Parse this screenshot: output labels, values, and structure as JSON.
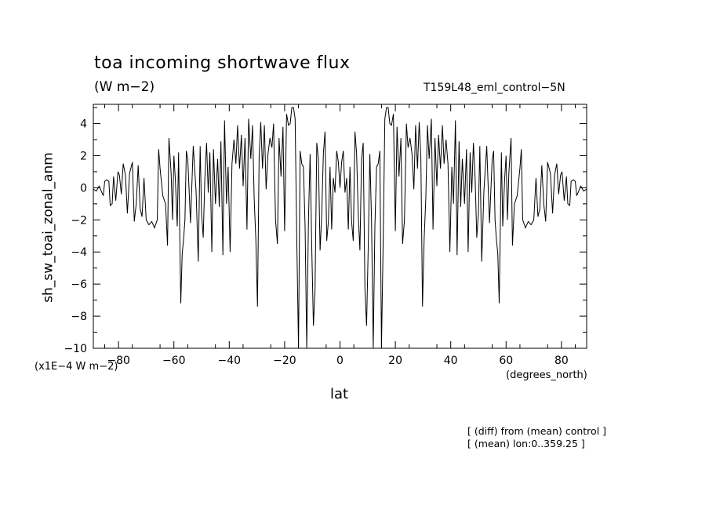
{
  "figure": {
    "title": "toa incoming shortwave flux",
    "units": "(W m−2)",
    "run_id": "T159L48_eml_control−5N",
    "y_scale_note": "(x1E−4 W m−2)",
    "x_units": "(degrees_north)",
    "notes": [
      "[ (diff) from (mean) control ]",
      "[ (mean) lon:0..359.25 ]"
    ]
  },
  "chart_data": {
    "type": "line",
    "title": "toa incoming shortwave flux",
    "xlabel": "lat",
    "ylabel": "sh_sw_toai_zonal_anm",
    "xlim": [
      -89.1,
      89.1
    ],
    "ylim": [
      -10,
      5.2
    ],
    "xticks": [
      -80,
      -60,
      -40,
      -20,
      0,
      20,
      40,
      60,
      80
    ],
    "yticks": [
      -10,
      -8,
      -6,
      -4,
      -2,
      0,
      2,
      4
    ],
    "grid": false,
    "line_color": "#000000",
    "series": [
      {
        "x": [
          -89.0,
          -88.0,
          -87.0,
          -86.5,
          -85.5,
          -85.0,
          -84.3,
          -83.5,
          -83.0,
          -82.3,
          -81.8,
          -81.0,
          -80.2,
          -79.7,
          -79.0,
          -78.3,
          -77.5,
          -76.8,
          -76.0,
          -75.0,
          -74.3,
          -73.6,
          -72.9,
          -72.2,
          -71.5,
          -70.8,
          -70.0,
          -69.0,
          -68.0,
          -67.0,
          -66.0,
          -65.5,
          -65.0,
          -64.0,
          -63.0,
          -62.3,
          -61.8,
          -61.0,
          -60.5,
          -60.0,
          -59.5,
          -58.8,
          -58.3,
          -57.5,
          -57.0,
          -56.5,
          -56.0,
          -55.5,
          -55.0,
          -54.0,
          -53.0,
          -52.0,
          -51.2,
          -50.5,
          -50.0,
          -49.4,
          -48.8,
          -48.2,
          -47.6,
          -47.0,
          -46.3,
          -45.7,
          -45.0,
          -44.2,
          -43.6,
          -43.0,
          -42.3,
          -41.7,
          -41.0,
          -40.4,
          -39.7,
          -39.0,
          -38.3,
          -37.6,
          -37.0,
          -36.3,
          -35.6,
          -35.0,
          -34.3,
          -33.6,
          -33.0,
          -32.2,
          -31.6,
          -31.0,
          -30.4,
          -29.8,
          -29.2,
          -28.6,
          -28.0,
          -27.3,
          -26.7,
          -26.0,
          -25.3,
          -24.6,
          -24.0,
          -23.3,
          -22.6,
          -22.0,
          -21.3,
          -20.6,
          -20.0,
          -19.3,
          -18.6,
          -18.0,
          -17.4,
          -16.8,
          -16.2,
          -15.6,
          -15.0,
          -14.4,
          -13.8,
          -13.2,
          -12.6,
          -12.0,
          -11.4,
          -10.8,
          -10.2,
          -9.6,
          -9.0,
          -8.4,
          -7.8,
          -7.2,
          -6.6,
          -6.0,
          -5.4,
          -4.8,
          -4.2,
          -3.6,
          -3.0,
          -2.4,
          -1.8,
          -1.2,
          -0.6,
          0.0,
          0.6,
          1.2,
          1.8,
          2.4,
          3.0,
          3.6,
          4.2,
          4.8,
          5.4,
          6.0,
          6.6,
          7.2,
          7.8,
          8.4,
          9.0,
          9.6,
          10.2,
          10.8,
          11.4,
          12.0,
          12.6,
          13.2,
          13.8,
          14.4,
          15.0,
          15.6,
          16.2,
          16.8,
          17.4,
          18.0,
          18.6,
          19.3,
          20.0,
          20.6,
          21.3,
          22.0,
          22.6,
          23.3,
          24.0,
          24.6,
          25.3,
          26.0,
          26.7,
          27.3,
          28.0,
          28.6,
          29.2,
          29.8,
          30.4,
          31.0,
          31.6,
          32.2,
          33.0,
          33.6,
          34.3,
          35.0,
          35.6,
          36.3,
          37.0,
          37.6,
          38.3,
          39.0,
          39.7,
          40.4,
          41.0,
          41.7,
          42.3,
          43.0,
          43.6,
          44.2,
          45.0,
          45.7,
          46.3,
          47.0,
          47.6,
          48.2,
          48.8,
          49.4,
          50.0,
          50.5,
          51.2,
          52.0,
          53.0,
          54.0,
          55.0,
          55.5,
          56.0,
          56.5,
          57.0,
          57.5,
          58.3,
          58.8,
          59.5,
          60.0,
          60.5,
          61.0,
          61.8,
          62.3,
          63.0,
          64.0,
          65.0,
          65.5,
          66.0,
          67.0,
          68.0,
          69.0,
          70.0,
          70.8,
          71.5,
          72.2,
          72.9,
          73.6,
          74.3,
          75.0,
          76.0,
          76.8,
          77.5,
          78.3,
          79.0,
          79.7,
          80.2,
          81.0,
          81.8,
          82.3,
          83.0,
          83.5,
          84.3,
          85.0,
          85.5,
          86.5,
          87.0,
          88.0,
          89.0
        ],
        "y": [
          -0.1,
          -0.2,
          0.1,
          -0.1,
          -0.5,
          0.4,
          0.5,
          0.4,
          -1.1,
          -1.0,
          0.7,
          -0.8,
          1.0,
          0.8,
          -0.4,
          1.5,
          0.8,
          -1.6,
          0.9,
          1.6,
          -2.1,
          -1.0,
          1.4,
          -1.3,
          -1.8,
          0.6,
          -2.0,
          -2.3,
          -2.1,
          -2.5,
          -2.0,
          2.4,
          1.2,
          -0.5,
          -1.0,
          -3.6,
          3.1,
          0.9,
          -2.0,
          2.0,
          0.6,
          -2.4,
          2.2,
          -7.2,
          -4.1,
          -3.2,
          -2.0,
          2.3,
          1.8,
          -2.2,
          2.6,
          -0.2,
          -4.6,
          2.6,
          -1.6,
          -3.1,
          0.6,
          2.8,
          -0.3,
          2.2,
          -4.0,
          2.4,
          -1.0,
          1.8,
          -1.2,
          2.9,
          -4.2,
          4.2,
          -1.0,
          1.3,
          -4.0,
          1.5,
          3.0,
          1.5,
          3.9,
          1.2,
          3.3,
          0.1,
          3.1,
          -2.6,
          4.3,
          1.8,
          3.9,
          -0.7,
          -3.2,
          -7.4,
          1.9,
          4.1,
          1.2,
          3.9,
          -0.1,
          2.1,
          3.1,
          2.5,
          4.0,
          -2.0,
          -3.5,
          3.1,
          0.7,
          3.8,
          -2.7,
          4.6,
          3.9,
          4.0,
          5.0,
          5.0,
          4.3,
          -3.2,
          -10.0,
          2.3,
          1.5,
          1.3,
          -2.4,
          -10.0,
          -2.0,
          2.1,
          -3.7,
          -8.6,
          -6.3,
          2.8,
          1.8,
          -3.9,
          -1.7,
          2.1,
          3.5,
          -3.3,
          -2.1,
          1.3,
          -2.6,
          0.6,
          -0.3,
          2.3,
          1.6,
          0.0,
          1.6,
          2.3,
          -0.3,
          0.6,
          -2.6,
          1.3,
          -2.1,
          -3.3,
          3.5,
          2.1,
          -1.7,
          -3.9,
          1.8,
          2.8,
          -6.3,
          -8.6,
          -3.7,
          2.1,
          -2.0,
          -10.0,
          -2.4,
          1.3,
          1.5,
          2.3,
          -10.0,
          -3.2,
          4.3,
          5.0,
          5.0,
          4.0,
          3.9,
          4.6,
          -2.7,
          3.8,
          0.7,
          3.1,
          -3.5,
          -2.0,
          4.0,
          2.5,
          3.1,
          2.1,
          -0.1,
          3.9,
          1.2,
          4.1,
          1.9,
          -7.4,
          -3.2,
          -0.7,
          3.9,
          1.8,
          4.3,
          -2.6,
          3.1,
          0.1,
          3.3,
          1.2,
          3.9,
          1.5,
          3.0,
          1.5,
          -4.0,
          1.3,
          -1.0,
          4.2,
          -4.2,
          2.9,
          -1.2,
          1.8,
          -1.0,
          2.4,
          -4.0,
          2.2,
          -0.3,
          2.8,
          0.6,
          -3.1,
          -1.6,
          2.6,
          -4.6,
          -0.2,
          2.6,
          -2.2,
          1.8,
          2.3,
          -2.0,
          -3.2,
          -4.1,
          -7.2,
          2.2,
          -2.4,
          0.6,
          2.0,
          -2.0,
          0.9,
          3.1,
          -3.6,
          -1.0,
          -0.5,
          1.2,
          2.4,
          -2.0,
          -2.5,
          -2.1,
          -2.3,
          -2.0,
          0.6,
          -1.8,
          -1.3,
          1.4,
          -1.0,
          -2.1,
          1.6,
          0.9,
          -1.6,
          0.8,
          1.5,
          -0.4,
          0.8,
          1.0,
          -0.8,
          0.7,
          -1.0,
          -1.1,
          0.4,
          0.5,
          0.4,
          -0.5,
          -0.1,
          0.1,
          -0.2,
          -0.1
        ]
      }
    ]
  }
}
